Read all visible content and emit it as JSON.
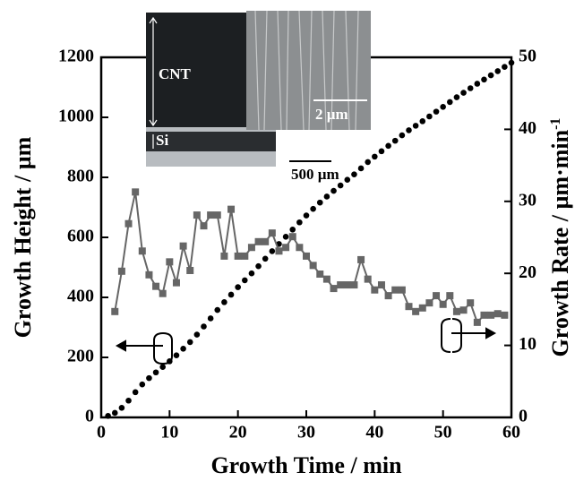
{
  "chart_data": {
    "type": "scatter",
    "xlabel": "Growth Time / min",
    "ylabel": "Growth Height / µm",
    "y2label": "Growth Rate / µm·min",
    "y2label_sup": "-1",
    "xlim": [
      0,
      60
    ],
    "xticks": [
      0,
      10,
      20,
      30,
      40,
      50,
      60
    ],
    "ylim": [
      0,
      1200
    ],
    "yticks": [
      0,
      200,
      400,
      600,
      800,
      1000,
      1200
    ],
    "y2lim": [
      0,
      50
    ],
    "y2ticks": [
      0,
      10,
      20,
      30,
      40,
      50
    ],
    "grid": false,
    "inset_labels": [
      "CNT",
      "2 µm",
      "Si",
      "500 µm"
    ],
    "series": [
      {
        "color": "#000000",
        "marker": "circle",
        "x": [
          1,
          2,
          3,
          4,
          5,
          6,
          7,
          8,
          9,
          10,
          11,
          12,
          13,
          14,
          15,
          16,
          17,
          18,
          19,
          20,
          21,
          22,
          23,
          24,
          25,
          26,
          27,
          28,
          29,
          30,
          31,
          32,
          33,
          34,
          35,
          36,
          37,
          38,
          39,
          40,
          41,
          42,
          43,
          44,
          45,
          46,
          47,
          48,
          49,
          50,
          51,
          52,
          53,
          54,
          55,
          56,
          57,
          58,
          59,
          60
        ],
        "values": [
          5,
          15,
          32,
          56,
          84,
          110,
          131,
          150,
          168,
          187,
          207,
          229,
          251,
          276,
          303,
          330,
          358,
          384,
          409,
          434,
          457,
          480,
          504,
          529,
          554,
          578,
          602,
          626,
          650,
          673,
          695,
          716,
          736,
          755,
          773,
          792,
          810,
          830,
          851,
          869,
          887,
          905,
          922,
          940,
          957,
          972,
          987,
          1003,
          1019,
          1035,
          1051,
          1067,
          1082,
          1097,
          1112,
          1126,
          1140,
          1154,
          1168,
          1182
        ]
      },
      {
        "color": "#666666",
        "marker": "square",
        "axis": "y2",
        "x": [
          2,
          3,
          4,
          5,
          6,
          7,
          8,
          9,
          10,
          11,
          12,
          13,
          14,
          15,
          16,
          17,
          18,
          19,
          20,
          21,
          22,
          23,
          24,
          25,
          26,
          27,
          28,
          29,
          30,
          31,
          32,
          33,
          34,
          35,
          36,
          37,
          38,
          39,
          40,
          41,
          42,
          43,
          44,
          45,
          46,
          47,
          48,
          49,
          50,
          51,
          52,
          53,
          54,
          55,
          56,
          57,
          58,
          59
        ],
        "values": [
          14.7,
          20.3,
          26.9,
          31.3,
          23.1,
          19.8,
          18.2,
          17.2,
          21.6,
          18.7,
          23.8,
          20.4,
          28.1,
          26.6,
          28.1,
          28.1,
          22.4,
          28.9,
          22.4,
          22.4,
          23.6,
          24.4,
          24.4,
          25.6,
          23.1,
          23.6,
          25.1,
          23.6,
          22.4,
          21.1,
          19.9,
          19.2,
          17.9,
          18.4,
          18.4,
          18.4,
          21.9,
          19.2,
          17.7,
          18.4,
          16.9,
          17.7,
          17.7,
          15.4,
          14.7,
          15.2,
          15.9,
          16.9,
          15.7,
          16.9,
          14.7,
          14.9,
          15.9,
          13.2,
          14.2,
          14.2,
          14.4,
          14.2
        ]
      }
    ]
  }
}
